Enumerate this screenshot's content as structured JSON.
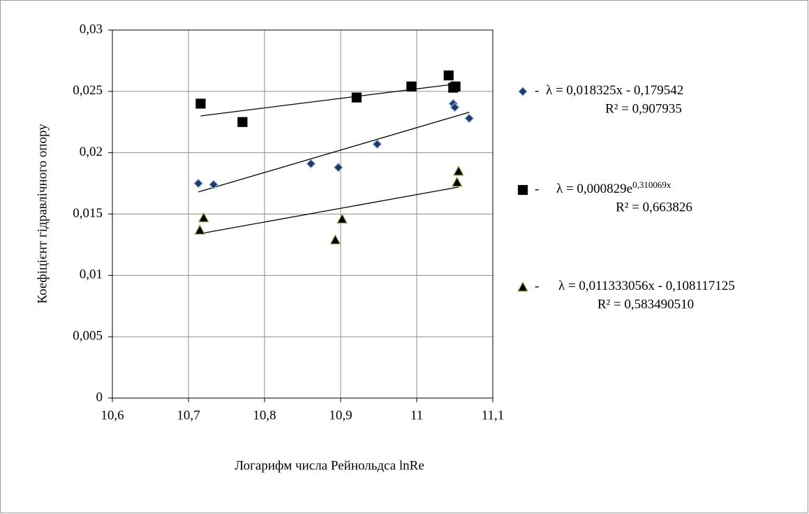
{
  "chart_data": {
    "type": "scatter",
    "x_label": "Логарифм числа Рейнольдса  lnRe",
    "y_label": "Коефіцієнт гідравлічного опору",
    "xlim": [
      10.6,
      11.1
    ],
    "xticks": [
      {
        "value": 10.6,
        "label": "10,6"
      },
      {
        "value": 10.7,
        "label": "10,7"
      },
      {
        "value": 10.8,
        "label": "10,8"
      },
      {
        "value": 10.9,
        "label": "10,9"
      },
      11,
      {
        "value": 11.1,
        "label": "11,1"
      }
    ],
    "ylim": [
      0,
      0.03
    ],
    "yticks": [
      0,
      {
        "value": 0.005,
        "label": "0,005"
      },
      {
        "value": 0.01,
        "label": "0,01"
      },
      {
        "value": 0.015,
        "label": "0,015"
      },
      {
        "value": 0.02,
        "label": "0,02"
      },
      {
        "value": 0.025,
        "label": "0,025"
      },
      {
        "value": 0.03,
        "label": "0,03"
      }
    ],
    "grid": true,
    "legend_separator": "-",
    "series": [
      {
        "marker": "diamond",
        "color": "#1f3864",
        "edge": "#8db3e2",
        "x": [
          10.713,
          10.733,
          10.861,
          10.897,
          10.948,
          11.048,
          11.05,
          11.069
        ],
        "values": [
          0.0175,
          0.0174,
          0.0191,
          0.0188,
          0.0207,
          0.024,
          0.0237,
          0.0228
        ],
        "trend_x": [
          10.713,
          11.069
        ],
        "trend_y": [
          0.0168,
          0.0233
        ],
        "equation": "λ = 0,018325x - 0,179542",
        "r2": "R² = 0,907935"
      },
      {
        "marker": "square",
        "color": "#000000",
        "edge": "#000000",
        "x": [
          10.716,
          10.771,
          10.921,
          10.993,
          11.042,
          11.048,
          11.051
        ],
        "values": [
          0.024,
          0.0225,
          0.0245,
          0.0254,
          0.0263,
          0.0253,
          0.0254
        ],
        "trend_x": [
          10.716,
          11.051
        ],
        "trend_y": [
          0.023,
          0.0256
        ],
        "equation": "λ = 0,000829e",
        "equation_sup": "0,310069x",
        "r2": "R² = 0,663826"
      },
      {
        "marker": "triangle",
        "color": "#000000",
        "edge": "#9bbb59",
        "x": [
          10.715,
          10.72,
          10.893,
          10.902,
          11.055,
          11.053
        ],
        "values": [
          0.0137,
          0.0147,
          0.0129,
          0.0146,
          0.0185,
          0.0176
        ],
        "trend_x": [
          10.715,
          11.055
        ],
        "trend_y": [
          0.0134,
          0.0172
        ],
        "equation": "λ = 0,011333056x - 0,108117125",
        "r2": "R² = 0,583490510"
      }
    ]
  }
}
